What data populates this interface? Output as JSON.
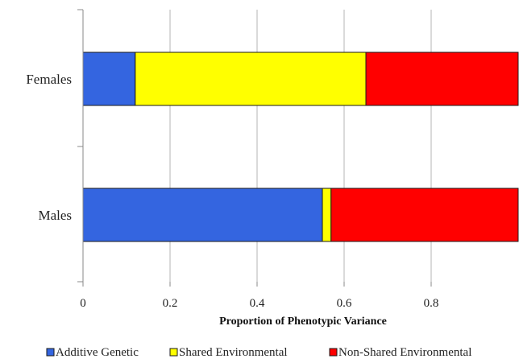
{
  "chart_data": {
    "type": "bar",
    "orientation": "horizontal",
    "stacked": true,
    "categories": [
      "Females",
      "Males"
    ],
    "series": [
      {
        "name": "Additive Genetic",
        "color": "#3465e0",
        "values": [
          0.12,
          0.55
        ]
      },
      {
        "name": "Shared Environmental",
        "color": "#ffff00",
        "values": [
          0.53,
          0.02
        ]
      },
      {
        "name": "Non-Shared Environmental",
        "color": "#ff0000",
        "values": [
          0.35,
          0.43
        ]
      }
    ],
    "title": "",
    "xlabel": "Proportion of Phenotypic Variance",
    "ylabel": "",
    "xlim": [
      0,
      1
    ],
    "xticks": [
      0,
      0.2,
      0.4,
      0.6,
      0.8
    ],
    "xtick_labels": [
      "0",
      "0.2",
      "0.4",
      "0.6",
      "0.8"
    ],
    "grid": "vertical",
    "legend": "bottom"
  }
}
